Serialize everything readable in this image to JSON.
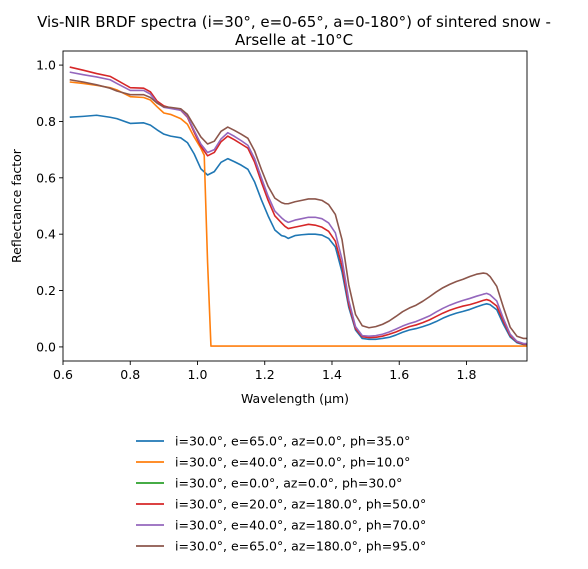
{
  "chart_data": {
    "type": "line",
    "title_line1": "Vis-NIR BRDF spectra (i=30°, e=0-65°, a=0-180°) of sintered snow -",
    "title_line2": "Arselle at -10°C",
    "xlabel": "Wavelength (μm)",
    "ylabel": "Reflectance factor",
    "xlim": [
      0.6,
      1.98
    ],
    "ylim": [
      -0.05,
      1.05
    ],
    "xticks": [
      0.6,
      0.8,
      1.0,
      1.2,
      1.4,
      1.6,
      1.8
    ],
    "xtick_labels": [
      "0.6",
      "0.8",
      "1.0",
      "1.2",
      "1.4",
      "1.6",
      "1.8"
    ],
    "yticks": [
      0.0,
      0.2,
      0.4,
      0.6,
      0.8,
      1.0
    ],
    "ytick_labels": [
      "0.0",
      "0.2",
      "0.4",
      "0.6",
      "0.8",
      "1.0"
    ],
    "grid": false,
    "legend_position": "below-center",
    "series": [
      {
        "name": "i=30.0°, e=65.0°, az=0.0°, ph=35.0°",
        "color": "#1f77b4",
        "x": [
          0.62,
          0.66,
          0.7,
          0.74,
          0.76,
          0.8,
          0.84,
          0.86,
          0.88,
          0.9,
          0.92,
          0.95,
          0.97,
          0.99,
          1.01,
          1.03,
          1.05,
          1.07,
          1.09,
          1.11,
          1.13,
          1.15,
          1.17,
          1.19,
          1.21,
          1.23,
          1.25,
          1.26,
          1.27,
          1.29,
          1.31,
          1.33,
          1.35,
          1.37,
          1.39,
          1.41,
          1.43,
          1.45,
          1.47,
          1.49,
          1.51,
          1.53,
          1.55,
          1.57,
          1.59,
          1.61,
          1.63,
          1.65,
          1.67,
          1.69,
          1.71,
          1.73,
          1.75,
          1.77,
          1.79,
          1.81,
          1.83,
          1.85,
          1.86,
          1.87,
          1.89,
          1.91,
          1.93,
          1.95,
          1.97,
          1.98
        ],
        "y": [
          0.815,
          0.818,
          0.822,
          0.815,
          0.81,
          0.793,
          0.795,
          0.787,
          0.77,
          0.755,
          0.748,
          0.742,
          0.725,
          0.685,
          0.632,
          0.61,
          0.622,
          0.655,
          0.668,
          0.657,
          0.645,
          0.63,
          0.585,
          0.522,
          0.465,
          0.415,
          0.395,
          0.392,
          0.385,
          0.395,
          0.398,
          0.4,
          0.4,
          0.397,
          0.385,
          0.355,
          0.265,
          0.14,
          0.06,
          0.03,
          0.027,
          0.027,
          0.03,
          0.034,
          0.042,
          0.052,
          0.06,
          0.065,
          0.072,
          0.08,
          0.09,
          0.102,
          0.112,
          0.12,
          0.126,
          0.133,
          0.142,
          0.15,
          0.153,
          0.15,
          0.132,
          0.08,
          0.035,
          0.015,
          0.008,
          0.008
        ]
      },
      {
        "name": "i=30.0°, e=40.0°, az=0.0°, ph=10.0°",
        "color": "#ff7f0e",
        "x": [
          0.62,
          0.66,
          0.7,
          0.74,
          0.76,
          0.8,
          0.84,
          0.86,
          0.88,
          0.9,
          0.92,
          0.95,
          0.97,
          0.99,
          1.01,
          1.02,
          1.03,
          1.04,
          1.1,
          1.2,
          1.4,
          1.6,
          1.8,
          1.98
        ],
        "y": [
          0.94,
          0.935,
          0.928,
          0.92,
          0.912,
          0.888,
          0.885,
          0.876,
          0.852,
          0.83,
          0.825,
          0.81,
          0.79,
          0.745,
          0.705,
          0.68,
          0.3,
          0.003,
          0.003,
          0.003,
          0.003,
          0.003,
          0.003,
          0.003
        ]
      },
      {
        "name": "i=30.0°, e=0.0°, az=0.0°, ph=30.0°",
        "color": "#2ca02c",
        "x": [],
        "y": []
      },
      {
        "name": "i=30.0°, e=20.0°, az=180.0°, ph=50.0°",
        "color": "#d62728",
        "x": [
          0.62,
          0.66,
          0.7,
          0.74,
          0.76,
          0.8,
          0.84,
          0.86,
          0.88,
          0.9,
          0.92,
          0.95,
          0.97,
          0.99,
          1.01,
          1.03,
          1.05,
          1.07,
          1.09,
          1.11,
          1.13,
          1.15,
          1.17,
          1.19,
          1.21,
          1.23,
          1.25,
          1.26,
          1.27,
          1.29,
          1.31,
          1.33,
          1.35,
          1.37,
          1.39,
          1.41,
          1.43,
          1.45,
          1.47,
          1.49,
          1.51,
          1.53,
          1.55,
          1.57,
          1.59,
          1.61,
          1.63,
          1.65,
          1.67,
          1.69,
          1.71,
          1.73,
          1.75,
          1.77,
          1.79,
          1.81,
          1.83,
          1.85,
          1.86,
          1.87,
          1.89,
          1.91,
          1.93,
          1.95,
          1.97,
          1.98
        ],
        "y": [
          0.993,
          0.982,
          0.97,
          0.96,
          0.947,
          0.92,
          0.918,
          0.905,
          0.872,
          0.855,
          0.848,
          0.84,
          0.815,
          0.762,
          0.712,
          0.678,
          0.69,
          0.728,
          0.748,
          0.735,
          0.72,
          0.705,
          0.655,
          0.585,
          0.52,
          0.465,
          0.44,
          0.428,
          0.42,
          0.425,
          0.43,
          0.435,
          0.432,
          0.425,
          0.41,
          0.375,
          0.285,
          0.15,
          0.065,
          0.036,
          0.033,
          0.034,
          0.038,
          0.045,
          0.053,
          0.063,
          0.072,
          0.078,
          0.086,
          0.096,
          0.108,
          0.12,
          0.13,
          0.138,
          0.145,
          0.15,
          0.157,
          0.165,
          0.168,
          0.164,
          0.145,
          0.09,
          0.04,
          0.018,
          0.01,
          0.01
        ]
      },
      {
        "name": "i=30.0°, e=40.0°, az=180.0°, ph=70.0°",
        "color": "#9467bd",
        "x": [
          0.62,
          0.66,
          0.7,
          0.74,
          0.76,
          0.8,
          0.84,
          0.86,
          0.88,
          0.9,
          0.92,
          0.95,
          0.97,
          0.99,
          1.01,
          1.03,
          1.05,
          1.07,
          1.09,
          1.11,
          1.13,
          1.15,
          1.17,
          1.19,
          1.21,
          1.23,
          1.25,
          1.26,
          1.27,
          1.29,
          1.31,
          1.33,
          1.35,
          1.37,
          1.39,
          1.41,
          1.43,
          1.45,
          1.47,
          1.49,
          1.51,
          1.53,
          1.55,
          1.57,
          1.59,
          1.61,
          1.63,
          1.65,
          1.67,
          1.69,
          1.71,
          1.73,
          1.75,
          1.77,
          1.79,
          1.81,
          1.83,
          1.85,
          1.86,
          1.87,
          1.89,
          1.91,
          1.93,
          1.95,
          1.97,
          1.98
        ],
        "y": [
          0.975,
          0.966,
          0.958,
          0.948,
          0.935,
          0.91,
          0.91,
          0.897,
          0.866,
          0.85,
          0.846,
          0.84,
          0.818,
          0.768,
          0.72,
          0.69,
          0.7,
          0.738,
          0.76,
          0.747,
          0.732,
          0.715,
          0.668,
          0.6,
          0.535,
          0.482,
          0.458,
          0.448,
          0.442,
          0.45,
          0.455,
          0.46,
          0.46,
          0.455,
          0.44,
          0.405,
          0.31,
          0.165,
          0.072,
          0.04,
          0.038,
          0.04,
          0.045,
          0.053,
          0.063,
          0.074,
          0.083,
          0.09,
          0.1,
          0.11,
          0.124,
          0.137,
          0.148,
          0.157,
          0.165,
          0.172,
          0.18,
          0.187,
          0.19,
          0.185,
          0.163,
          0.1,
          0.045,
          0.02,
          0.012,
          0.012
        ]
      },
      {
        "name": "i=30.0°, e=65.0°, az=180.0°, ph=95.0°",
        "color": "#8c564b",
        "x": [
          0.62,
          0.66,
          0.7,
          0.74,
          0.76,
          0.8,
          0.84,
          0.86,
          0.88,
          0.9,
          0.92,
          0.95,
          0.97,
          0.99,
          1.01,
          1.03,
          1.05,
          1.07,
          1.09,
          1.11,
          1.13,
          1.15,
          1.17,
          1.19,
          1.21,
          1.23,
          1.25,
          1.26,
          1.27,
          1.29,
          1.31,
          1.33,
          1.35,
          1.37,
          1.39,
          1.41,
          1.43,
          1.45,
          1.47,
          1.49,
          1.51,
          1.53,
          1.55,
          1.57,
          1.59,
          1.61,
          1.63,
          1.65,
          1.67,
          1.69,
          1.71,
          1.73,
          1.75,
          1.77,
          1.79,
          1.81,
          1.83,
          1.85,
          1.86,
          1.87,
          1.89,
          1.91,
          1.93,
          1.95,
          1.97,
          1.98
        ],
        "y": [
          0.948,
          0.94,
          0.93,
          0.918,
          0.908,
          0.895,
          0.895,
          0.885,
          0.865,
          0.852,
          0.85,
          0.845,
          0.825,
          0.785,
          0.745,
          0.72,
          0.73,
          0.765,
          0.78,
          0.768,
          0.755,
          0.74,
          0.695,
          0.63,
          0.57,
          0.528,
          0.512,
          0.508,
          0.508,
          0.515,
          0.52,
          0.525,
          0.525,
          0.52,
          0.505,
          0.47,
          0.38,
          0.22,
          0.115,
          0.075,
          0.068,
          0.072,
          0.08,
          0.092,
          0.108,
          0.125,
          0.138,
          0.148,
          0.162,
          0.178,
          0.195,
          0.21,
          0.222,
          0.232,
          0.24,
          0.25,
          0.258,
          0.262,
          0.26,
          0.25,
          0.215,
          0.14,
          0.07,
          0.038,
          0.03,
          0.03
        ]
      }
    ]
  }
}
